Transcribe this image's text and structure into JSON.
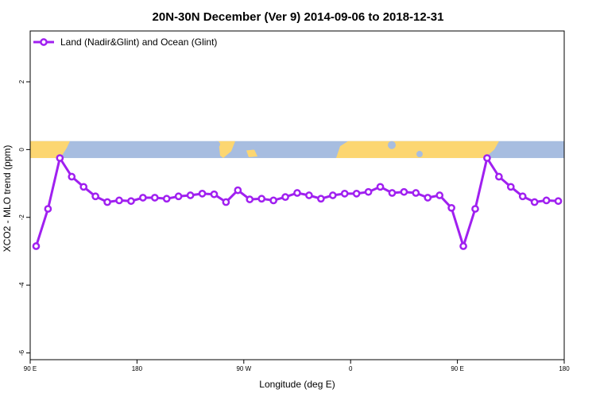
{
  "chart_data": {
    "type": "line",
    "title": "20N-30N December (Ver 9)   2014-09-06 to 2018-12-31",
    "xlabel": "Longitude (deg E)",
    "ylabel": "XCO2 - MLO trend (ppm)",
    "xlim": [
      90,
      540
    ],
    "ylim": [
      -6.2,
      3.5
    ],
    "x_tick_labels": [
      "90 E",
      "180",
      "90 W",
      "0",
      "90 E",
      "180"
    ],
    "y_tick_labels": [
      "2",
      "0",
      "-2",
      "-4",
      "-6"
    ],
    "y_ticks": [
      2,
      0,
      -2,
      -4,
      -6
    ],
    "legend": {
      "placement": "top-left",
      "entries": [
        "Land (Nadir&Glint) and Ocean (Glint)"
      ]
    },
    "series": [
      {
        "name": "Land (Nadir&Glint) and Ocean (Glint)",
        "color": "#a020f0",
        "x": [
          95,
          105,
          115,
          125,
          135,
          145,
          155,
          165,
          175,
          185,
          195,
          205,
          215,
          225,
          235,
          245,
          255,
          265,
          275,
          285,
          295,
          305,
          315,
          325,
          335,
          345,
          355,
          365,
          375,
          385,
          395,
          405,
          415,
          425,
          435,
          445,
          455,
          465,
          475,
          485,
          495,
          505,
          515,
          525,
          535
        ],
        "values": [
          -2.85,
          -1.75,
          -0.25,
          -0.8,
          -1.1,
          -1.38,
          -1.55,
          -1.5,
          -1.52,
          -1.42,
          -1.42,
          -1.45,
          -1.38,
          -1.35,
          -1.3,
          -1.32,
          -1.55,
          -1.2,
          -1.47,
          -1.45,
          -1.5,
          -1.4,
          -1.28,
          -1.35,
          -1.45,
          -1.35,
          -1.3,
          -1.3,
          -1.25,
          -1.1,
          -1.28,
          -1.25,
          -1.28,
          -1.42,
          -1.35,
          -1.72,
          -2.85,
          -1.75,
          -0.25,
          -0.8,
          -1.1,
          -1.38,
          -1.55,
          -1.5,
          -1.52
        ]
      }
    ],
    "map_strip": {
      "ymin": -0.25,
      "ymax": 0.25,
      "ocean_color": "#a7bde0",
      "land_color": "#fcd671"
    }
  }
}
